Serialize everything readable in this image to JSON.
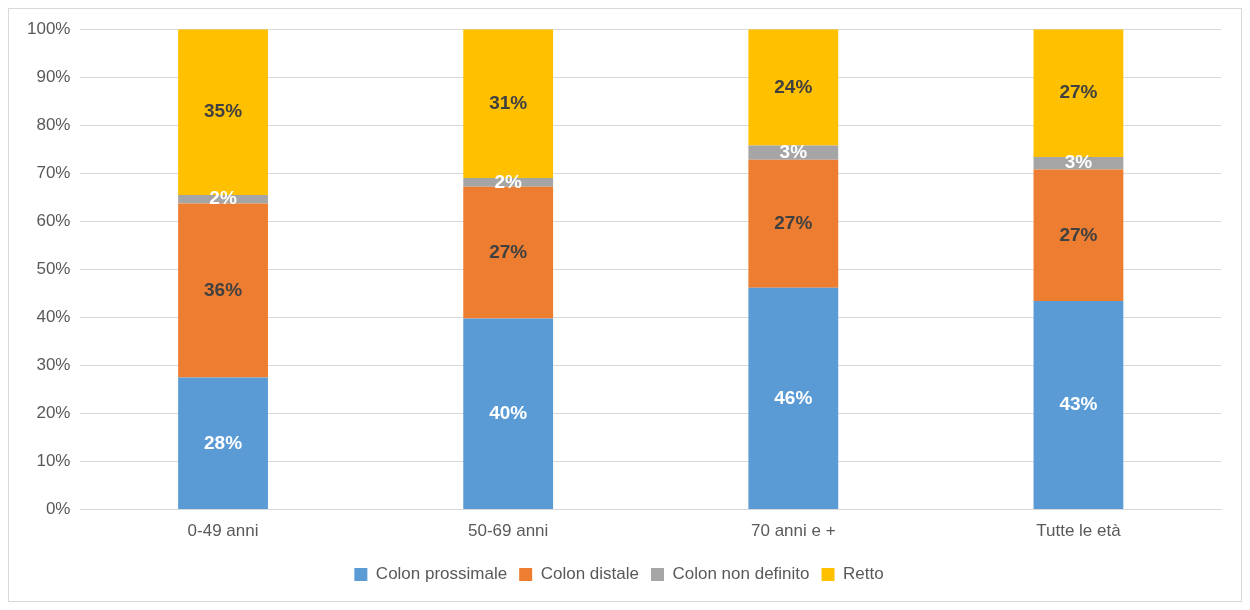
{
  "chart_data": {
    "type": "bar",
    "stacked": true,
    "categories": [
      "0-49 anni",
      "50-69 anni",
      "70 anni e +",
      "Tutte le età"
    ],
    "series": [
      {
        "name": "Colon prossimale",
        "color": "#5b9bd5",
        "values": [
          27.5,
          39.8,
          46.2,
          43.4
        ],
        "value_labels": [
          "28%",
          "40%",
          "46%",
          "43%"
        ]
      },
      {
        "name": "Colon distale",
        "color": "#ed7d31",
        "values": [
          36.2,
          27.4,
          26.6,
          27.4
        ],
        "value_labels": [
          "36%",
          "27%",
          "27%",
          "27%"
        ]
      },
      {
        "name": "Colon non definito",
        "color": "#a5a5a5",
        "values": [
          1.8,
          1.8,
          3.0,
          2.6
        ],
        "value_labels": [
          "2%",
          "2%",
          "3%",
          "3%"
        ]
      },
      {
        "name": "Retto",
        "color": "#ffc000",
        "values": [
          34.5,
          31,
          24.2,
          26.6
        ],
        "value_labels": [
          "35%",
          "31%",
          "24%",
          "27%"
        ]
      }
    ],
    "ylim": [
      0,
      100
    ],
    "yticks": [
      {
        "value": 0,
        "label": "0%"
      },
      {
        "value": 10,
        "label": "10%"
      },
      {
        "value": 20,
        "label": "20%"
      },
      {
        "value": 30,
        "label": "30%"
      },
      {
        "value": 40,
        "label": "40%"
      },
      {
        "value": 50,
        "label": "50%"
      },
      {
        "value": 60,
        "label": "60%"
      },
      {
        "value": 70,
        "label": "70%"
      },
      {
        "value": 80,
        "label": "80%"
      },
      {
        "value": 90,
        "label": "90%"
      },
      {
        "value": 100,
        "label": "100%"
      }
    ],
    "grid": "y",
    "legend": "bottom"
  }
}
